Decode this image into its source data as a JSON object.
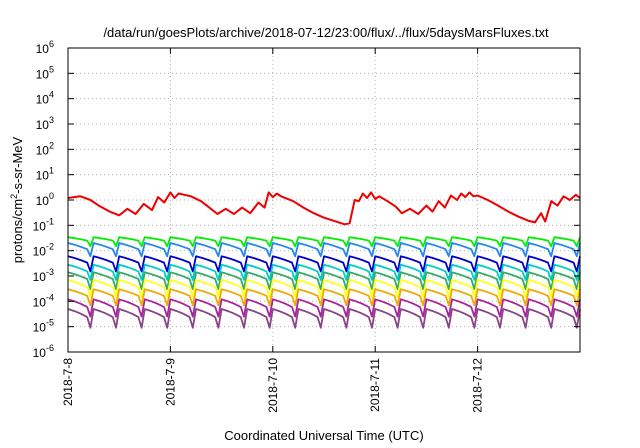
{
  "chart_data": {
    "type": "line",
    "title": "/data/run/goesPlots/archive/2018-07-12/23:00/flux/../flux/5daysMarsFluxes.txt",
    "xlabel": "Coordinated Universal Time (UTC)",
    "ylabel": {
      "base": "protons/cm",
      "sup": "2",
      "rest": "-s-sr-MeV"
    },
    "x_ticks": [
      "2018-7-8",
      "2018-7-9",
      "2018-7-10",
      "2018-7-11",
      "2018-7-12"
    ],
    "xlim": [
      0,
      5
    ],
    "yscale": "log",
    "y_tick_exponents": [
      -6,
      -5,
      -4,
      -3,
      -2,
      -1,
      0,
      1,
      2,
      3,
      4,
      5,
      6
    ],
    "y_tick_base": "10",
    "grid": true,
    "legend": "none",
    "series": [
      {
        "color": "#ee0000",
        "x": [
          0,
          0.12,
          0.22,
          0.3,
          0.42,
          0.5,
          0.58,
          0.66,
          0.74,
          0.82,
          0.88,
          0.94,
          1.0,
          1.04,
          1.08,
          1.2,
          1.3,
          1.38,
          1.46,
          1.54,
          1.62,
          1.7,
          1.78,
          1.86,
          1.92,
          1.96,
          2.0,
          2.04,
          2.08,
          2.2,
          2.3,
          2.4,
          2.5,
          2.6,
          2.7,
          2.75,
          2.8,
          2.84,
          2.88,
          2.92,
          2.96,
          3.0,
          3.04,
          3.12,
          3.2,
          3.26,
          3.34,
          3.42,
          3.5,
          3.56,
          3.62,
          3.68,
          3.74,
          3.8,
          3.84,
          3.88,
          3.92,
          3.96,
          4.0,
          4.1,
          4.2,
          4.3,
          4.4,
          4.5,
          4.56,
          4.62,
          4.66,
          4.72,
          4.78,
          4.84,
          4.9,
          4.96,
          5.0
        ],
        "y": [
          1.2,
          1.4,
          1.0,
          0.6,
          0.33,
          0.25,
          0.45,
          0.28,
          0.7,
          0.4,
          1.3,
          0.8,
          2.0,
          1.2,
          1.8,
          1.4,
          0.9,
          0.5,
          0.28,
          0.45,
          0.28,
          0.5,
          0.3,
          0.8,
          0.5,
          2.0,
          1.3,
          1.8,
          1.4,
          0.9,
          0.5,
          0.3,
          0.2,
          0.15,
          0.11,
          0.12,
          1.0,
          0.9,
          1.8,
          1.2,
          2.0,
          1.1,
          1.4,
          0.9,
          0.55,
          0.3,
          0.45,
          0.28,
          0.6,
          0.35,
          0.9,
          0.5,
          1.5,
          1.0,
          1.8,
          1.3,
          2.0,
          1.4,
          1.5,
          1.0,
          0.6,
          0.35,
          0.22,
          0.15,
          0.13,
          0.3,
          0.14,
          0.9,
          0.6,
          1.4,
          1.0,
          1.6,
          1.2
        ]
      },
      {
        "color": "#00ee00",
        "base": 0.022,
        "amp": 0.034,
        "dip": 0.015
      },
      {
        "color": "#2288ee",
        "base": 0.0085,
        "amp": 0.02,
        "dip": 0.006
      },
      {
        "color": "#0000cc",
        "base": 0.0025,
        "amp": 0.006,
        "dip": 0.0015
      },
      {
        "color": "#00cccc",
        "base": 0.0011,
        "amp": 0.0028,
        "dip": 0.0007
      },
      {
        "color": "#33aa66",
        "base": 0.00055,
        "amp": 0.0014,
        "dip": 0.0003
      },
      {
        "color": "#ffff22",
        "base": 0.00025,
        "amp": 0.0007,
        "dip": 0.00015
      },
      {
        "color": "#eeaa00",
        "base": 0.00012,
        "amp": 0.0003,
        "dip": 7e-05
      },
      {
        "color": "#aa2299",
        "base": 4e-05,
        "amp": 0.00012,
        "dip": 2.5e-05
      },
      {
        "color": "#884488",
        "base": 1.5e-05,
        "amp": 5e-05,
        "dip": 9e-06
      }
    ]
  }
}
